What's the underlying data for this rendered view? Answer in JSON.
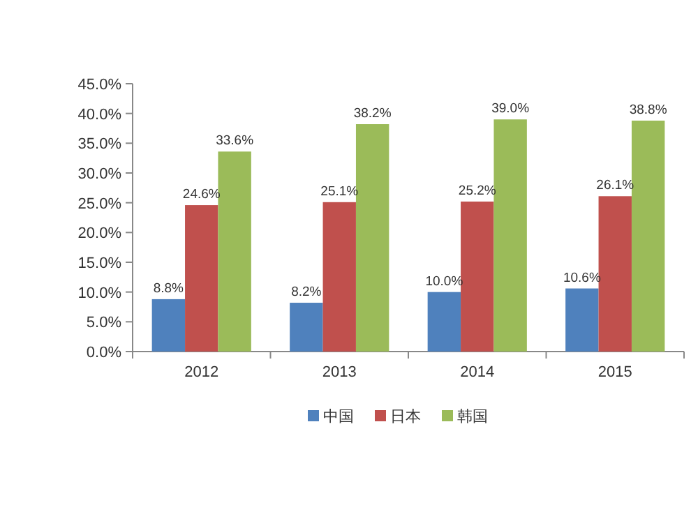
{
  "chart_data": {
    "type": "bar",
    "categories": [
      "2012",
      "2013",
      "2014",
      "2015"
    ],
    "series": [
      {
        "name": "中国",
        "color": "#4f81bd",
        "values": [
          8.8,
          8.2,
          10.0,
          10.6
        ],
        "value_labels": [
          "8.8%",
          "8.2%",
          "10.0%",
          "10.6%"
        ]
      },
      {
        "name": "日本",
        "color": "#c0504d",
        "values": [
          24.6,
          25.1,
          25.2,
          26.1
        ],
        "value_labels": [
          "24.6%",
          "25.1%",
          "25.2%",
          "26.1%"
        ]
      },
      {
        "name": "韩国",
        "color": "#9bbb59",
        "values": [
          33.6,
          38.2,
          39.0,
          38.8
        ],
        "value_labels": [
          "33.6%",
          "38.2%",
          "39.0%",
          "38.8%"
        ]
      }
    ],
    "ylim": [
      0,
      45
    ],
    "yticks": [
      {
        "value": 0,
        "label": "0.0%"
      },
      {
        "value": 5,
        "label": "5.0%"
      },
      {
        "value": 10,
        "label": "10.0%"
      },
      {
        "value": 15,
        "label": "15.0%"
      },
      {
        "value": 20,
        "label": "20.0%"
      },
      {
        "value": 25,
        "label": "25.0%"
      },
      {
        "value": 30,
        "label": "30.0%"
      },
      {
        "value": 35,
        "label": "35.0%"
      },
      {
        "value": 40,
        "label": "40.0%"
      },
      {
        "value": 45,
        "label": "45.0%"
      }
    ],
    "grid": false,
    "legend": "bottom"
  }
}
